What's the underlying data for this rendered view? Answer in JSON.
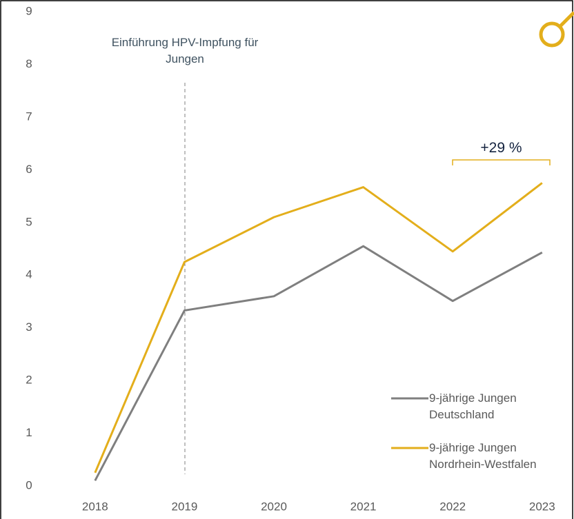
{
  "chart_data": {
    "type": "line",
    "categories": [
      "2018",
      "2019",
      "2020",
      "2021",
      "2022",
      "2023"
    ],
    "series": [
      {
        "name": "9-jährige Jungen Deutschland",
        "color": "#7f7f7f",
        "values": [
          0.1,
          3.33,
          3.6,
          4.55,
          3.51,
          4.43
        ]
      },
      {
        "name": "9-jährige Jungen Nordrhein-Westfalen",
        "color": "#e3ae1b",
        "values": [
          0.25,
          4.25,
          5.1,
          5.67,
          4.45,
          5.75
        ]
      }
    ],
    "ylim": [
      0,
      9
    ],
    "yticks": [
      0,
      1,
      2,
      3,
      4,
      5,
      6,
      7,
      8,
      9
    ],
    "grid": false,
    "legend": "lower right",
    "annotations": [
      "Einführung HPV-Impfung für Jungen",
      "+29 %"
    ]
  }
}
